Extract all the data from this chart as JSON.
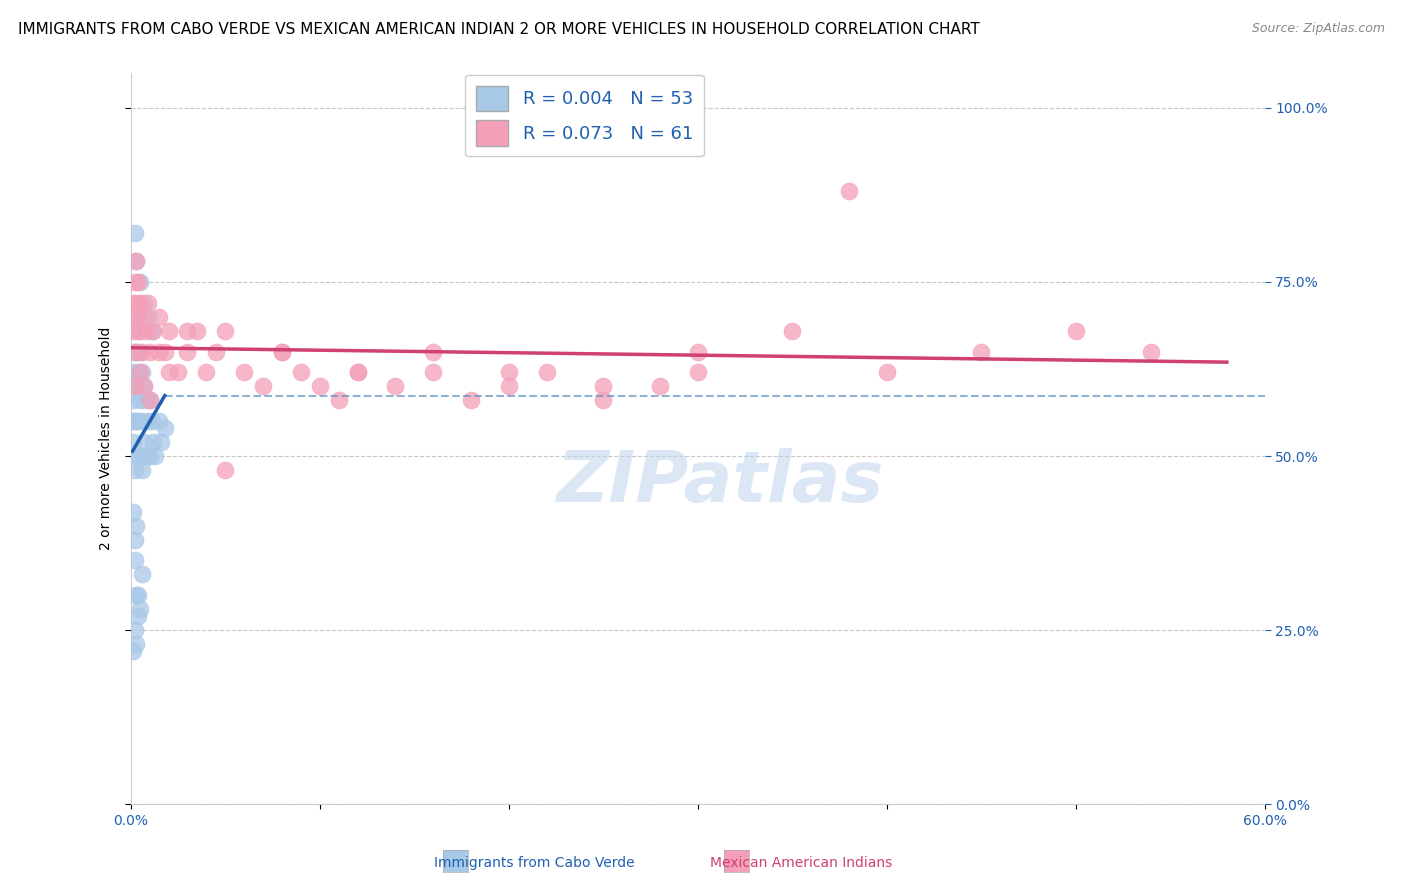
{
  "title": "IMMIGRANTS FROM CABO VERDE VS MEXICAN AMERICAN INDIAN 2 OR MORE VEHICLES IN HOUSEHOLD CORRELATION CHART",
  "source": "Source: ZipAtlas.com",
  "ylabel": "2 or more Vehicles in Household",
  "blue_label": "Immigrants from Cabo Verde",
  "pink_label": "Mexican American Indians",
  "blue_R": 0.004,
  "blue_N": 53,
  "pink_R": 0.073,
  "pink_N": 61,
  "blue_color": "#a8c8e8",
  "pink_color": "#f4a0b8",
  "blue_line_color": "#2060b0",
  "pink_line_color": "#d04070",
  "dashed_color": "#6090c0",
  "xlim": [
    0.0,
    0.6
  ],
  "ylim": [
    0.0,
    1.05
  ],
  "xtick_positions": [
    0.0,
    0.1,
    0.2,
    0.3,
    0.4,
    0.5,
    0.6
  ],
  "ytick_positions": [
    0.0,
    0.25,
    0.5,
    0.75,
    1.0
  ],
  "blue_x": [
    0.001,
    0.001,
    0.001,
    0.001,
    0.001,
    0.002,
    0.002,
    0.002,
    0.002,
    0.003,
    0.003,
    0.003,
    0.003,
    0.004,
    0.004,
    0.004,
    0.005,
    0.005,
    0.005,
    0.006,
    0.006,
    0.006,
    0.007,
    0.007,
    0.008,
    0.008,
    0.009,
    0.01,
    0.01,
    0.011,
    0.012,
    0.013,
    0.015,
    0.016,
    0.018,
    0.001,
    0.002,
    0.002,
    0.003,
    0.003,
    0.004,
    0.005,
    0.006,
    0.001,
    0.002,
    0.003,
    0.004,
    0.002,
    0.003,
    0.005,
    0.007,
    0.009,
    0.011
  ],
  "blue_y": [
    0.62,
    0.58,
    0.55,
    0.52,
    0.5,
    0.65,
    0.6,
    0.55,
    0.48,
    0.7,
    0.65,
    0.6,
    0.55,
    0.68,
    0.62,
    0.55,
    0.65,
    0.58,
    0.5,
    0.62,
    0.55,
    0.48,
    0.6,
    0.52,
    0.58,
    0.5,
    0.55,
    0.58,
    0.5,
    0.55,
    0.52,
    0.5,
    0.55,
    0.52,
    0.54,
    0.42,
    0.38,
    0.35,
    0.4,
    0.3,
    0.3,
    0.28,
    0.33,
    0.22,
    0.25,
    0.23,
    0.27,
    0.82,
    0.78,
    0.75,
    0.72,
    0.7,
    0.68
  ],
  "pink_x": [
    0.001,
    0.001,
    0.002,
    0.002,
    0.003,
    0.003,
    0.004,
    0.004,
    0.005,
    0.005,
    0.006,
    0.007,
    0.008,
    0.009,
    0.01,
    0.012,
    0.015,
    0.018,
    0.02,
    0.025,
    0.03,
    0.035,
    0.04,
    0.045,
    0.05,
    0.06,
    0.07,
    0.08,
    0.09,
    0.1,
    0.11,
    0.12,
    0.14,
    0.16,
    0.18,
    0.2,
    0.22,
    0.25,
    0.28,
    0.3,
    0.002,
    0.003,
    0.005,
    0.007,
    0.01,
    0.015,
    0.02,
    0.03,
    0.05,
    0.08,
    0.12,
    0.16,
    0.2,
    0.25,
    0.3,
    0.35,
    0.4,
    0.45,
    0.5,
    0.54,
    0.38
  ],
  "pink_y": [
    0.68,
    0.72,
    0.75,
    0.7,
    0.78,
    0.72,
    0.7,
    0.75,
    0.68,
    0.72,
    0.65,
    0.7,
    0.68,
    0.72,
    0.65,
    0.68,
    0.7,
    0.65,
    0.68,
    0.62,
    0.65,
    0.68,
    0.62,
    0.65,
    0.68,
    0.62,
    0.6,
    0.65,
    0.62,
    0.6,
    0.58,
    0.62,
    0.6,
    0.62,
    0.58,
    0.6,
    0.62,
    0.58,
    0.6,
    0.62,
    0.6,
    0.65,
    0.62,
    0.6,
    0.58,
    0.65,
    0.62,
    0.68,
    0.48,
    0.65,
    0.62,
    0.65,
    0.62,
    0.6,
    0.65,
    0.68,
    0.62,
    0.65,
    0.68,
    0.65,
    0.88
  ],
  "watermark": "ZIPatlas",
  "background_color": "#ffffff",
  "grid_color": "#c8c8c8",
  "title_fontsize": 11,
  "tick_fontsize": 10,
  "legend_fontsize": 13
}
